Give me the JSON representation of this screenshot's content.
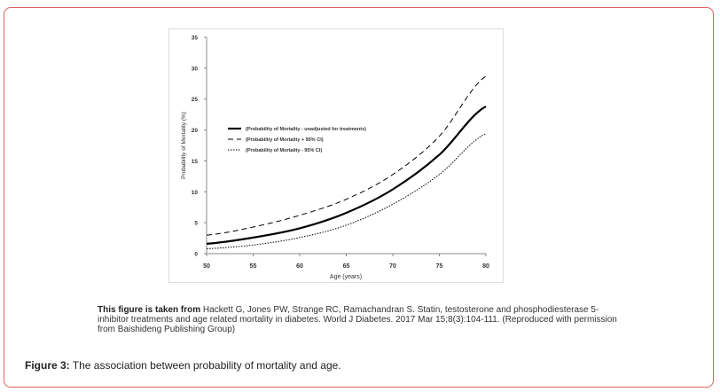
{
  "chart_data": {
    "type": "line",
    "xlabel": "Age (years)",
    "ylabel": "Probability of Mortality (%)",
    "xlim": [
      50,
      80
    ],
    "ylim": [
      0,
      35
    ],
    "x_ticks": [
      50,
      55,
      60,
      65,
      70,
      75,
      80
    ],
    "y_ticks": [
      0,
      5,
      10,
      15,
      20,
      25,
      30,
      35
    ],
    "grid": false,
    "legend_position": "center-left",
    "x": [
      50,
      55,
      60,
      65,
      70,
      75,
      80
    ],
    "series": [
      {
        "name": "(Probability of Mortality - unadjusted for treatments)",
        "style": "solid",
        "values": [
          1.6,
          2.6,
          4.1,
          6.6,
          10.4,
          16.0,
          23.8
        ]
      },
      {
        "name": "(Probability of Mortality + 95% CI)",
        "style": "dashed",
        "values": [
          3.0,
          4.3,
          6.2,
          8.8,
          12.8,
          19.0,
          28.7
        ]
      },
      {
        "name": "(Probability of Mortality - 95% CI)",
        "style": "dotted",
        "values": [
          0.8,
          1.4,
          2.6,
          4.6,
          8.0,
          12.8,
          19.4
        ]
      }
    ]
  },
  "source": {
    "lead": "This figure is taken from",
    "text": " Hackett G, Jones PW, Strange RC, Ramachandran S. Statin, testosterone and phosphodiesterase 5-inhibitor treatments and age related mortality in diabetes. World J Diabetes. 2017 Mar 15;8(3):104-111. (Reproduced with permission from Baishideng Publishing Group)"
  },
  "caption": {
    "label": "Figure 3:",
    "text": " The association between probability of mortality and age."
  },
  "colors": {
    "frame": "#e06060",
    "lines": "#000000"
  }
}
